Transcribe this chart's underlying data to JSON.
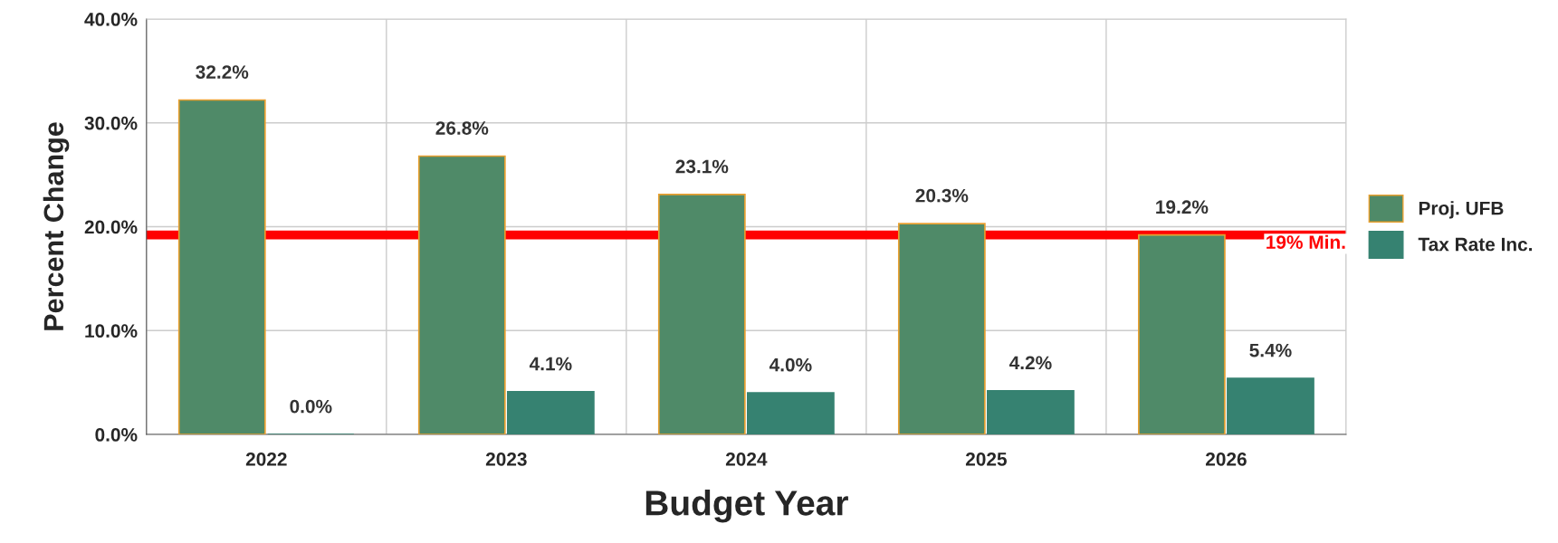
{
  "chart_data": {
    "type": "bar",
    "xlabel": "Budget Year",
    "ylabel": "Percent Change",
    "categories": [
      "2022",
      "2023",
      "2024",
      "2025",
      "2026"
    ],
    "series": [
      {
        "name": "Proj. UFB",
        "color": "#4f8a68",
        "values": [
          32.2,
          26.8,
          23.1,
          20.3,
          19.2
        ],
        "value_labels": [
          "32.2%",
          "26.8%",
          "23.1%",
          "20.3%",
          "19.2%"
        ]
      },
      {
        "name": "Tax Rate Inc.",
        "color": "#368271",
        "values": [
          0.0,
          4.1,
          4.0,
          4.2,
          5.4
        ],
        "value_labels": [
          "0.0%",
          "4.1%",
          "4.0%",
          "4.2%",
          "5.4%"
        ]
      }
    ],
    "ylim": [
      0,
      40
    ],
    "yticks": [
      {
        "value": 0,
        "label": "0.0%"
      },
      {
        "value": 10,
        "label": "10.0%"
      },
      {
        "value": 20,
        "label": "20.0%"
      },
      {
        "value": 30,
        "label": "30.0%"
      },
      {
        "value": 40,
        "label": "40.0%"
      }
    ],
    "ref_lines": [
      {
        "axis": "y",
        "value": 19.2,
        "label": "19% Min.",
        "color": "#ff0000"
      }
    ],
    "grid": true,
    "legend": "right"
  }
}
